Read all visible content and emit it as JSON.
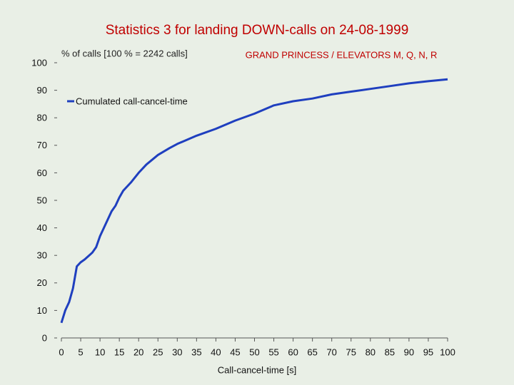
{
  "chart_data": {
    "type": "line",
    "title": "Statistics 3 for landing DOWN-calls on 24-08-1999",
    "y_axis_label": "% of calls [100 % = 2242 calls]",
    "subtitle": "GRAND PRINCESS / ELEVATORS M, Q, N, R",
    "x_axis_label": "Call-cancel-time [s]",
    "xlim": [
      0,
      100
    ],
    "ylim": [
      0,
      100
    ],
    "xticks": [
      0,
      5,
      10,
      15,
      20,
      25,
      30,
      35,
      40,
      45,
      50,
      55,
      60,
      65,
      70,
      75,
      80,
      85,
      90,
      95,
      100
    ],
    "yticks": [
      0,
      10,
      20,
      30,
      40,
      50,
      60,
      70,
      80,
      90,
      100
    ],
    "series": [
      {
        "name": "Cumulated call-cancel-time",
        "color": "#1f3fbf",
        "x": [
          0,
          1,
          2,
          3,
          4,
          5,
          6,
          8,
          9,
          10,
          11,
          13,
          14,
          15,
          16,
          18,
          20,
          22,
          25,
          28,
          30,
          35,
          40,
          45,
          50,
          55,
          60,
          65,
          70,
          75,
          80,
          85,
          90,
          95,
          100
        ],
        "values": [
          5.5,
          10,
          13,
          18,
          26,
          27.5,
          28.5,
          31,
          33,
          37,
          40,
          46,
          48,
          51,
          53.5,
          56.5,
          60,
          63,
          66.5,
          69,
          70.5,
          73.5,
          76,
          79,
          81.5,
          84.5,
          86,
          87,
          88.5,
          89.5,
          90.5,
          91.5,
          92.5,
          93.3,
          94
        ]
      }
    ]
  }
}
